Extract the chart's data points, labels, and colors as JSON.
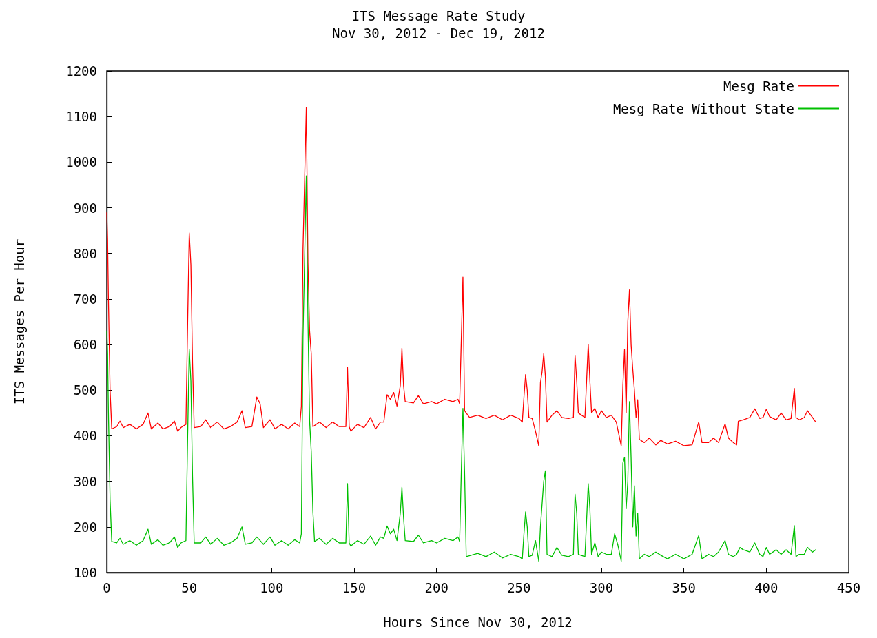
{
  "chart_data": {
    "type": "line",
    "title": "ITS Message Rate Study",
    "subtitle": "Nov 30, 2012 - Dec 19, 2012",
    "xlabel": "Hours Since Nov 30, 2012",
    "ylabel": "ITS Messages Per Hour",
    "xlim": [
      0,
      450
    ],
    "xticks": [
      0,
      50,
      100,
      150,
      200,
      250,
      300,
      350,
      400,
      450
    ],
    "ylim": [
      100,
      1200
    ],
    "yticks": [
      100,
      200,
      300,
      400,
      500,
      600,
      700,
      800,
      900,
      1000,
      1100,
      1200
    ],
    "grid": false,
    "legend": "top right",
    "marker": "none",
    "line_style": "solid",
    "series": [
      {
        "name": "Mesg Rate",
        "color": "#ff0000",
        "x": [
          0,
          0.5,
          1,
          2,
          3,
          6,
          8,
          10,
          14,
          18,
          22,
          25,
          27,
          31,
          34,
          38,
          41,
          43,
          45,
          48,
          49,
          50,
          51,
          52,
          53,
          57,
          60,
          63,
          67,
          71,
          75,
          79,
          82,
          84,
          88,
          91,
          93,
          95,
          99,
          102,
          106,
          110,
          114,
          117,
          118,
          119,
          121,
          122,
          123,
          124,
          125,
          129,
          133,
          137,
          141,
          145,
          146,
          147,
          148,
          152,
          156,
          160,
          163,
          166,
          168,
          170,
          172,
          174,
          176,
          178,
          179,
          180,
          181,
          186,
          189,
          192,
          197,
          200,
          205,
          210,
          213,
          214,
          215,
          216,
          217,
          220,
          225,
          230,
          235,
          240,
          245,
          250,
          252,
          253,
          254,
          255,
          256,
          258,
          260,
          262,
          263,
          264,
          265,
          266,
          267,
          270,
          273,
          276,
          280,
          283,
          284,
          285,
          286,
          290,
          292,
          293,
          294,
          296,
          298,
          300,
          303,
          306,
          309,
          312,
          313,
          314,
          315,
          316,
          317,
          318,
          319,
          320,
          321,
          322,
          323,
          326,
          329,
          333,
          336,
          340,
          345,
          350,
          355,
          359,
          361,
          365,
          368,
          371,
          375,
          377,
          380,
          382,
          383,
          386,
          390,
          393,
          396,
          398,
          400,
          402,
          406,
          409,
          412,
          415,
          417,
          418,
          420,
          423,
          425,
          428,
          430
        ],
        "values": [
          890,
          830,
          700,
          500,
          415,
          420,
          432,
          418,
          425,
          415,
          425,
          450,
          415,
          428,
          415,
          420,
          432,
          410,
          418,
          425,
          640,
          845,
          775,
          560,
          418,
          420,
          435,
          418,
          430,
          415,
          420,
          430,
          455,
          418,
          420,
          485,
          470,
          418,
          435,
          415,
          425,
          415,
          428,
          420,
          465,
          810,
          1120,
          780,
          630,
          580,
          420,
          430,
          418,
          430,
          420,
          420,
          550,
          420,
          410,
          425,
          418,
          440,
          415,
          430,
          430,
          490,
          480,
          495,
          465,
          510,
          592,
          510,
          475,
          472,
          488,
          470,
          475,
          470,
          480,
          475,
          480,
          470,
          610,
          748,
          455,
          440,
          445,
          438,
          445,
          435,
          445,
          438,
          430,
          485,
          534,
          500,
          440,
          438,
          410,
          378,
          516,
          540,
          580,
          530,
          430,
          445,
          455,
          440,
          438,
          440,
          577,
          520,
          450,
          440,
          601,
          520,
          450,
          460,
          440,
          455,
          440,
          445,
          430,
          378,
          510,
          589,
          450,
          650,
          720,
          600,
          546,
          500,
          440,
          479,
          392,
          385,
          395,
          380,
          390,
          382,
          388,
          378,
          380,
          430,
          385,
          385,
          395,
          385,
          426,
          395,
          385,
          380,
          432,
          435,
          440,
          459,
          438,
          440,
          458,
          442,
          435,
          450,
          435,
          438,
          504,
          440,
          435,
          440,
          455,
          440,
          430
        ]
      },
      {
        "name": "Mesg Rate Without State",
        "color": "#00c000",
        "x": [
          0,
          0.5,
          1,
          2,
          3,
          6,
          8,
          10,
          14,
          18,
          22,
          25,
          27,
          31,
          34,
          38,
          41,
          43,
          45,
          48,
          49,
          50,
          51,
          52,
          53,
          57,
          60,
          63,
          67,
          71,
          75,
          79,
          82,
          84,
          88,
          91,
          93,
          95,
          99,
          102,
          106,
          110,
          114,
          117,
          118,
          119,
          121,
          122,
          123,
          124,
          125,
          126,
          129,
          133,
          137,
          141,
          145,
          146,
          147,
          148,
          152,
          156,
          160,
          163,
          166,
          168,
          170,
          172,
          174,
          176,
          178,
          179,
          180,
          181,
          186,
          189,
          192,
          197,
          200,
          205,
          210,
          213,
          214,
          215,
          216,
          217,
          218,
          225,
          230,
          235,
          240,
          245,
          250,
          252,
          253,
          254,
          255,
          256,
          258,
          260,
          262,
          263,
          264,
          265,
          266,
          267,
          270,
          273,
          276,
          280,
          283,
          284,
          285,
          286,
          290,
          292,
          293,
          294,
          296,
          298,
          300,
          303,
          306,
          308,
          310,
          312,
          313,
          314,
          315,
          316,
          317,
          318,
          319,
          320,
          321,
          322,
          323,
          326,
          329,
          333,
          336,
          340,
          345,
          350,
          355,
          359,
          361,
          365,
          368,
          371,
          375,
          377,
          380,
          382,
          384,
          386,
          390,
          393,
          396,
          398,
          400,
          402,
          406,
          409,
          412,
          415,
          417,
          418,
          420,
          423,
          425,
          428,
          430
        ],
        "values": [
          630,
          580,
          450,
          260,
          168,
          165,
          175,
          162,
          170,
          160,
          170,
          195,
          162,
          172,
          160,
          165,
          178,
          155,
          165,
          170,
          390,
          590,
          520,
          310,
          165,
          165,
          178,
          162,
          175,
          160,
          165,
          175,
          200,
          162,
          165,
          178,
          170,
          162,
          178,
          160,
          170,
          160,
          172,
          165,
          185,
          616,
          970,
          655,
          433,
          365,
          233,
          168,
          175,
          162,
          175,
          165,
          165,
          295,
          165,
          158,
          170,
          162,
          180,
          160,
          178,
          175,
          202,
          185,
          195,
          170,
          230,
          287,
          220,
          170,
          168,
          182,
          165,
          170,
          165,
          175,
          170,
          178,
          168,
          320,
          460,
          320,
          135,
          142,
          135,
          145,
          132,
          140,
          135,
          130,
          185,
          233,
          200,
          135,
          138,
          170,
          125,
          200,
          250,
          300,
          323,
          140,
          135,
          155,
          138,
          135,
          140,
          272,
          230,
          140,
          135,
          295,
          240,
          140,
          165,
          135,
          145,
          140,
          140,
          185,
          160,
          125,
          340,
          353,
          240,
          300,
          475,
          350,
          200,
          290,
          180,
          230,
          130,
          140,
          135,
          145,
          138,
          130,
          140,
          130,
          140,
          181,
          130,
          140,
          135,
          145,
          170,
          140,
          135,
          140,
          155,
          150,
          145,
          165,
          140,
          135,
          155,
          140,
          150,
          140,
          150,
          140,
          203,
          135,
          140,
          140,
          155,
          145,
          150
        ]
      }
    ]
  }
}
